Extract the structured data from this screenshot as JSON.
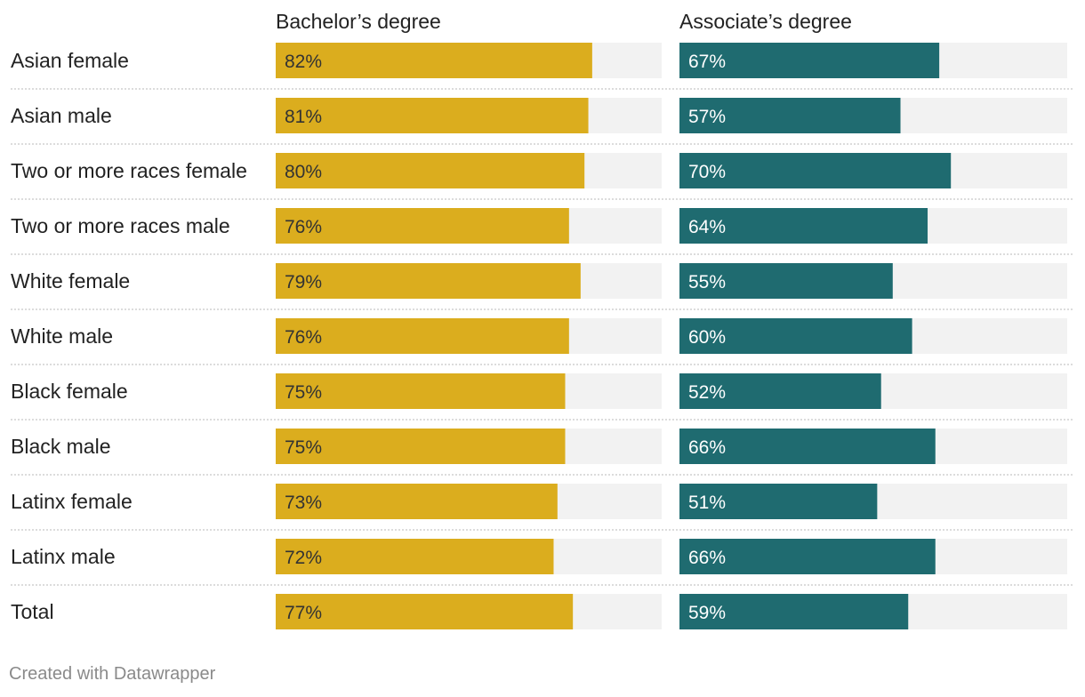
{
  "chart_data": {
    "type": "bar",
    "title": "",
    "xlabel": "",
    "ylabel": "",
    "xlim": [
      0,
      100
    ],
    "categories": [
      "Asian female",
      "Asian male",
      "Two or more races female",
      "Two or more races male",
      "White female",
      "White male",
      "Black female",
      "Black male",
      "Latinx female",
      "Latinx male",
      "Total"
    ],
    "series": [
      {
        "name": "Bachelor’s degree",
        "color": "#dbad1e",
        "label_color": "#333333",
        "values": [
          82,
          81,
          80,
          76,
          79,
          76,
          75,
          75,
          73,
          72,
          77
        ],
        "labels": [
          "82%",
          "81%",
          "80%",
          "76%",
          "79%",
          "76%",
          "75%",
          "75%",
          "73%",
          "72%",
          "77%"
        ]
      },
      {
        "name": "Associate’s degree",
        "color": "#1f6b70",
        "label_color": "#ffffff",
        "values": [
          67,
          57,
          70,
          64,
          55,
          60,
          52,
          66,
          51,
          66,
          59
        ],
        "labels": [
          "67%",
          "57%",
          "70%",
          "64%",
          "55%",
          "60%",
          "52%",
          "66%",
          "51%",
          "66%",
          "59%"
        ]
      }
    ],
    "track_color": "#f2f2f2",
    "gridline_style": "dotted"
  },
  "footer": {
    "credit": "Created with Datawrapper"
  }
}
